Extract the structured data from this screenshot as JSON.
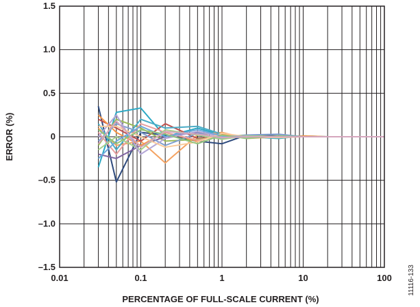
{
  "chart_data": {
    "type": "line",
    "title": "",
    "xlabel": "PERCENTAGE OF FULL-SCALE CURRENT (%)",
    "ylabel": "ERROR (%)",
    "figure_id": "11116-133",
    "xscale": "log",
    "xlim": [
      0.01,
      100
    ],
    "ylim": [
      -1.5,
      1.5
    ],
    "xticks": [
      {
        "value": 0.01,
        "label": "0.01"
      },
      {
        "value": 0.1,
        "label": "0.1"
      },
      {
        "value": 1,
        "label": "1"
      },
      {
        "value": 10,
        "label": "10"
      },
      {
        "value": 100,
        "label": "100"
      }
    ],
    "yticks": [
      {
        "value": 1.5,
        "label": "1.5"
      },
      {
        "value": 1.0,
        "label": "1.0"
      },
      {
        "value": 0.5,
        "label": "0.5"
      },
      {
        "value": 0,
        "label": "0"
      },
      {
        "value": -0.5,
        "label": "–0.5"
      },
      {
        "value": -1.0,
        "label": "–1.0"
      },
      {
        "value": -1.5,
        "label": "–1.5"
      }
    ],
    "grid": true,
    "legend": "none",
    "x": [
      0.03,
      0.05,
      0.1,
      0.2,
      0.5,
      1,
      2,
      5,
      10,
      20,
      50,
      100
    ],
    "series": [
      {
        "color": "#2e4a7d",
        "values": [
          0.35,
          -0.52,
          0.05,
          0.02,
          -0.05,
          -0.08,
          0.02,
          0.01,
          0.0,
          0.0,
          0.0,
          0.0
        ]
      },
      {
        "color": "#2aa8c4",
        "values": [
          -0.35,
          0.28,
          0.33,
          0.0,
          0.1,
          0.02,
          0.0,
          -0.02,
          0.01,
          0.0,
          0.0,
          0.0
        ]
      },
      {
        "color": "#f4a261",
        "values": [
          0.1,
          -0.1,
          -0.05,
          -0.3,
          0.02,
          0.05,
          -0.02,
          0.0,
          0.0,
          0.0,
          0.0,
          0.0
        ]
      },
      {
        "color": "#c0504d",
        "values": [
          0.2,
          0.1,
          -0.05,
          0.15,
          -0.02,
          0.0,
          0.01,
          0.0,
          0.0,
          0.0,
          0.0,
          0.0
        ]
      },
      {
        "color": "#9bbb59",
        "values": [
          -0.1,
          0.2,
          0.1,
          -0.05,
          -0.03,
          0.0,
          0.02,
          0.0,
          0.0,
          0.0,
          0.0,
          0.0
        ]
      },
      {
        "color": "#8064a2",
        "values": [
          -0.2,
          -0.25,
          -0.1,
          0.0,
          0.05,
          0.02,
          0.0,
          0.01,
          0.0,
          0.0,
          0.0,
          0.0
        ]
      },
      {
        "color": "#4bacc6",
        "values": [
          0.15,
          -0.15,
          0.2,
          0.1,
          0.12,
          0.03,
          -0.01,
          0.0,
          0.0,
          0.0,
          0.0,
          0.0
        ]
      },
      {
        "color": "#f79646",
        "values": [
          0.25,
          0.05,
          -0.1,
          0.05,
          -0.05,
          0.03,
          0.0,
          0.0,
          0.01,
          0.0,
          0.0,
          0.0
        ]
      },
      {
        "color": "#7f9fcf",
        "values": [
          -0.05,
          0.15,
          0.05,
          -0.1,
          0.04,
          -0.02,
          0.02,
          0.03,
          0.0,
          0.0,
          0.0,
          0.0
        ]
      },
      {
        "color": "#e8a0a0",
        "values": [
          0.05,
          -0.2,
          0.15,
          0.05,
          -0.04,
          0.01,
          0.0,
          0.0,
          0.0,
          0.0,
          0.0,
          0.0
        ]
      },
      {
        "color": "#a8d08d",
        "values": [
          -0.15,
          0.0,
          -0.15,
          0.08,
          0.02,
          -0.03,
          0.01,
          0.0,
          0.0,
          0.0,
          0.0,
          0.0
        ]
      },
      {
        "color": "#b4a7d6",
        "values": [
          0.0,
          0.25,
          -0.2,
          -0.02,
          0.06,
          0.0,
          -0.01,
          0.0,
          0.0,
          0.0,
          0.0,
          0.0
        ]
      },
      {
        "color": "#f9cb9c",
        "values": [
          0.12,
          0.12,
          0.0,
          -0.12,
          -0.06,
          0.04,
          0.0,
          -0.01,
          0.0,
          0.0,
          0.0,
          0.0
        ]
      },
      {
        "color": "#6fa8dc",
        "values": [
          -0.25,
          -0.05,
          0.12,
          0.0,
          0.08,
          0.01,
          0.0,
          0.0,
          0.0,
          0.0,
          0.0,
          0.0
        ]
      },
      {
        "color": "#93c47d",
        "values": [
          0.08,
          -0.08,
          0.08,
          0.03,
          -0.08,
          0.02,
          -0.02,
          0.01,
          0.0,
          0.0,
          0.0,
          0.0
        ]
      },
      {
        "color": "#d5a6bd",
        "values": [
          -0.08,
          0.18,
          -0.12,
          0.06,
          0.03,
          -0.01,
          0.0,
          0.0,
          0.0,
          0.0,
          0.0,
          0.0
        ]
      }
    ]
  }
}
